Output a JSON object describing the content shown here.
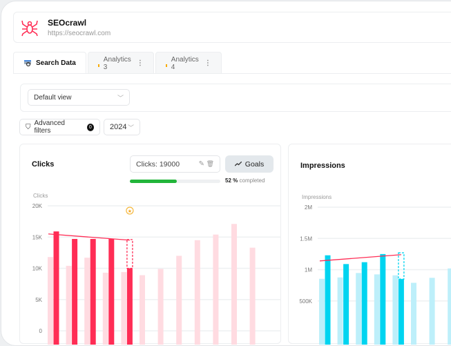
{
  "site": {
    "name": "SEOcrawl",
    "url": "https://seocrawl.com"
  },
  "tabs": [
    {
      "label": "Search Data",
      "icon": "search-console-icon",
      "active": true
    },
    {
      "label": "Analytics 3",
      "icon": "analytics-bars-icon"
    },
    {
      "label": "Analytics 4",
      "icon": "analytics-bars-icon"
    }
  ],
  "view_select": {
    "value": "Default view"
  },
  "filters": {
    "label": "Advanced filters",
    "count": "0",
    "year": "2024"
  },
  "clicks": {
    "title": "Clicks",
    "goal_field": "Clicks: 19000",
    "goals_button": "Goals",
    "progress_pct": "52",
    "progress_unit": "%",
    "progress_text": "completed",
    "progress_fraction": 0.52,
    "progress_color": "#22b53a"
  },
  "impressions": {
    "title": "Impressions"
  },
  "chart_data": [
    {
      "type": "bar",
      "ylabel": "Clicks",
      "yticks": [
        "20K",
        "15K",
        "10K",
        "5K",
        "0"
      ],
      "ylim": [
        0,
        20000
      ],
      "grid": true,
      "series": [
        {
          "values": [
            11800,
            10400,
            11700,
            9300,
            9400,
            8900,
            9900,
            12000,
            14500,
            15400,
            17100,
            13300
          ],
          "color": "#ffdbe1"
        },
        {
          "values": [
            15900,
            14700,
            14700,
            14700,
            10000
          ],
          "color": "#ff2d55"
        }
      ],
      "projection": 14600,
      "trend": [
        15500,
        14500
      ],
      "goal_marker": "star-icon"
    },
    {
      "type": "bar",
      "ylabel": "Impressions",
      "yticks": [
        "2M",
        "1.5M",
        "1M",
        "500K"
      ],
      "ylim": [
        0,
        2000000
      ],
      "grid": true,
      "series": [
        {
          "values": [
            854000,
            876000,
            947000,
            925000,
            910000,
            790000,
            870000,
            1020000
          ],
          "color": "#bdeffa"
        },
        {
          "values": [
            1230000,
            1090000,
            1120000,
            1250000,
            850000
          ],
          "color": "#00d4f0"
        }
      ],
      "projection": 1270000,
      "trend": [
        1140000,
        1240000
      ]
    }
  ]
}
